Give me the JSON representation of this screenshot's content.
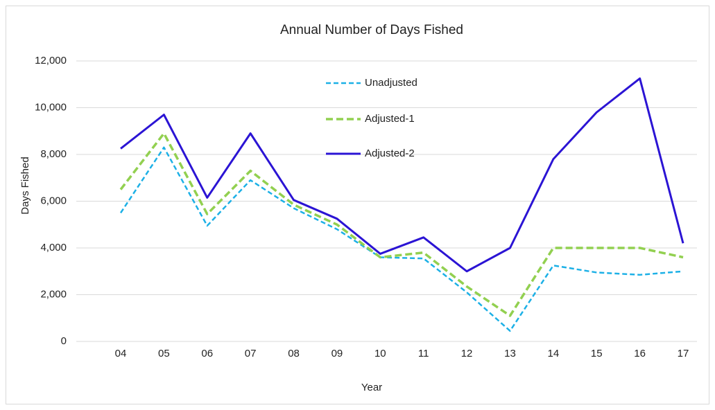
{
  "chart_data": {
    "type": "line",
    "title": "Annual Number of Days Fished",
    "x_label": "Year",
    "y_label": "Days Fished",
    "categories": [
      "04",
      "05",
      "06",
      "07",
      "08",
      "09",
      "10",
      "11",
      "12",
      "13",
      "14",
      "15",
      "16",
      "17"
    ],
    "series": [
      {
        "name": "Unadjusted",
        "color": "#1cb0e6",
        "line_style": "dashed",
        "values": [
          5500,
          8300,
          4950,
          6900,
          5700,
          4800,
          3600,
          3550,
          2100,
          450,
          3250,
          2950,
          2850,
          3000
        ]
      },
      {
        "name": "Adjusted-1",
        "color": "#92d050",
        "line_style": "dashed",
        "values": [
          6500,
          8900,
          5450,
          7300,
          5850,
          5000,
          3600,
          3800,
          2350,
          1100,
          4000,
          4000,
          4000,
          3600
        ]
      },
      {
        "name": "Adjusted-2",
        "color": "#2b14d4",
        "line_style": "solid",
        "values": [
          8250,
          9700,
          6150,
          8900,
          6050,
          5250,
          3750,
          4450,
          3000,
          4000,
          7800,
          9800,
          11250,
          4200
        ]
      }
    ],
    "ylim": [
      0,
      12000
    ],
    "yticks": [
      0,
      {
        "value": 2000,
        "label": "2,000"
      },
      {
        "value": 4000,
        "label": "4,000"
      },
      {
        "value": 6000,
        "label": "6,000"
      },
      {
        "value": 8000,
        "label": "8,000"
      },
      {
        "value": 10000,
        "label": "10,000"
      },
      {
        "value": 12000,
        "label": "12,000"
      }
    ],
    "grid": true
  }
}
